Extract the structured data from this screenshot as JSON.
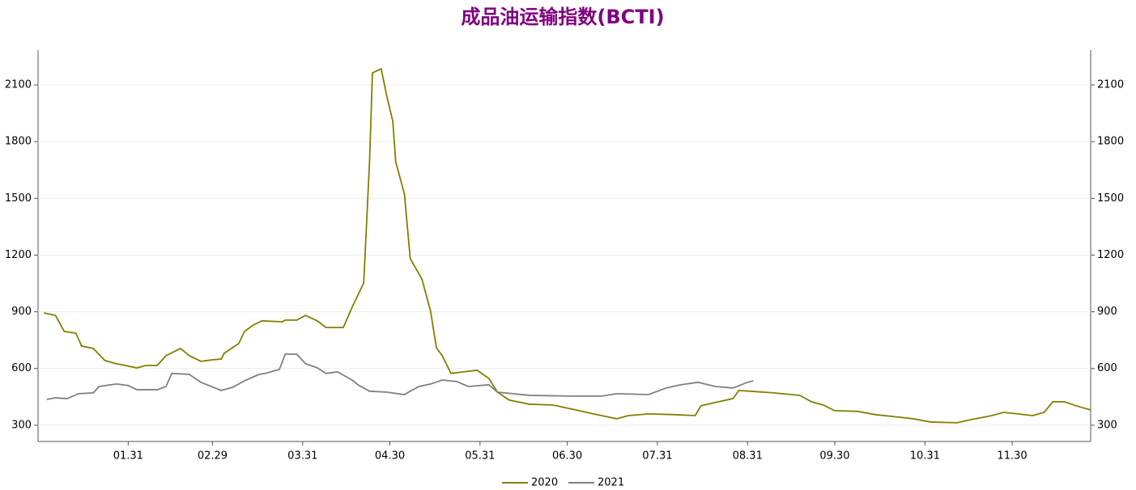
{
  "chart_data": {
    "type": "line",
    "title": "成品油运输指数(BCTI)",
    "xlim": [
      0,
      362
    ],
    "xticks": [
      {
        "value": 31,
        "label": "01.31"
      },
      {
        "value": 60,
        "label": "02.29"
      },
      {
        "value": 91,
        "label": "03.31"
      },
      {
        "value": 121,
        "label": "04.30"
      },
      {
        "value": 152,
        "label": "05.31"
      },
      {
        "value": 182,
        "label": "06.30"
      },
      {
        "value": 213,
        "label": "07.31"
      },
      {
        "value": 244,
        "label": "08.31"
      },
      {
        "value": 274,
        "label": "09.30"
      },
      {
        "value": 305,
        "label": "10.31"
      },
      {
        "value": 335,
        "label": "11.30"
      }
    ],
    "ylim": [
      214,
      2284
    ],
    "yticks": [
      300,
      600,
      900,
      1200,
      1500,
      1800,
      2100
    ],
    "grid": true,
    "legend": "bottom",
    "series": [
      {
        "name": "2020",
        "color": "#808000",
        "x": [
          2,
          6,
          9,
          13,
          15,
          19,
          23,
          27,
          30,
          34,
          37,
          41,
          44,
          49,
          52,
          56,
          60,
          63,
          64,
          69,
          71,
          74,
          77,
          84,
          85,
          89,
          92,
          96,
          99,
          105,
          108,
          112,
          114,
          115,
          118,
          120,
          122,
          123,
          126,
          128,
          132,
          135,
          137,
          139,
          142,
          146,
          151,
          155,
          158,
          162,
          169,
          177,
          185,
          191,
          199,
          203,
          210,
          219,
          226,
          228,
          234,
          239,
          241,
          245,
          253,
          262,
          266,
          270,
          274,
          282,
          288,
          296,
          301,
          307,
          316,
          321,
          328,
          332,
          337,
          342,
          346,
          349,
          353,
          357,
          362
        ],
        "values": [
          894,
          881,
          796,
          787,
          719,
          706,
          642,
          625,
          616,
          603,
          616,
          616,
          668,
          706,
          668,
          638,
          646,
          650,
          680,
          732,
          796,
          830,
          852,
          847,
          856,
          856,
          881,
          852,
          817,
          817,
          924,
          1052,
          1694,
          2164,
          2185,
          2036,
          1908,
          1694,
          1523,
          1181,
          1074,
          903,
          710,
          668,
          574,
          582,
          591,
          548,
          475,
          433,
          411,
          407,
          381,
          360,
          334,
          351,
          360,
          356,
          351,
          403,
          424,
          441,
          484,
          480,
          471,
          458,
          424,
          407,
          377,
          373,
          356,
          343,
          334,
          317,
          313,
          330,
          351,
          368,
          360,
          351,
          368,
          424,
          424,
          403,
          381
        ]
      },
      {
        "name": "2021",
        "color": "#808080",
        "x": [
          3,
          6,
          10,
          14,
          19,
          21,
          27,
          31,
          34,
          41,
          44,
          46,
          52,
          56,
          63,
          67,
          71,
          76,
          78,
          83,
          85,
          89,
          92,
          96,
          99,
          103,
          108,
          110,
          114,
          120,
          126,
          128,
          131,
          135,
          139,
          144,
          148,
          155,
          158,
          169,
          183,
          194,
          199,
          210,
          216,
          221,
          227,
          233,
          239,
          244,
          246
        ],
        "values": [
          437,
          445,
          441,
          467,
          471,
          505,
          518,
          510,
          488,
          488,
          505,
          574,
          569,
          527,
          484,
          501,
          535,
          569,
          574,
          595,
          676,
          676,
          625,
          604,
          574,
          582,
          539,
          514,
          480,
          475,
          462,
          480,
          505,
          518,
          539,
          531,
          505,
          514,
          475,
          458,
          454,
          454,
          467,
          462,
          497,
          514,
          527,
          505,
          497,
          527,
          535
        ]
      }
    ]
  }
}
